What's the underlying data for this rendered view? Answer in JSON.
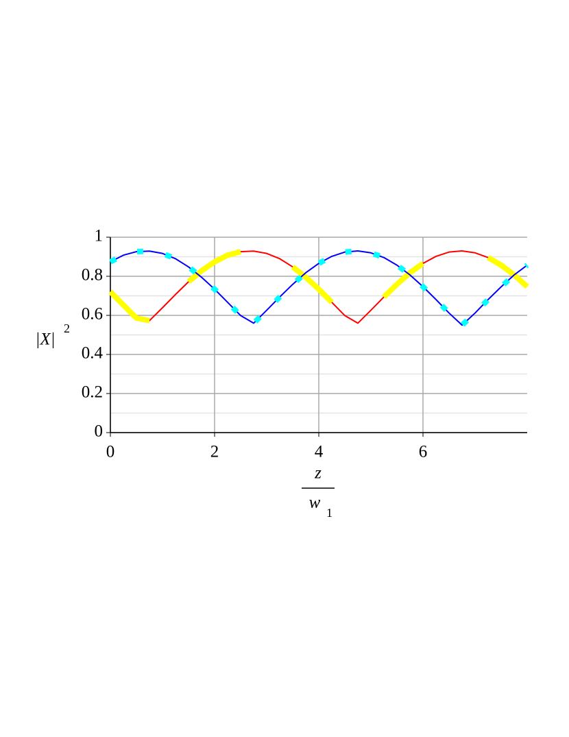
{
  "chart_data": {
    "type": "line",
    "xlabel": {
      "numerator": "z",
      "denominator": "w",
      "subscript": "1"
    },
    "ylabel": {
      "base": "|X|",
      "sup": "2"
    },
    "x": [
      0,
      0.25,
      0.5,
      0.75,
      1,
      1.25,
      1.5,
      1.75,
      2,
      2.25,
      2.5,
      2.75,
      3,
      3.25,
      3.5,
      3.75,
      4,
      4.25,
      4.5,
      4.75,
      5,
      5.25,
      5.5,
      5.75,
      6,
      6.25,
      6.5,
      6.75,
      7,
      7.25,
      7.5,
      7.75,
      8
    ],
    "series": [
      {
        "color": "#ff0000",
        "width": 2,
        "values": [
          0.721,
          0.653,
          0.586,
          0.573,
          0.639,
          0.707,
          0.772,
          0.828,
          0.874,
          0.908,
          0.926,
          0.929,
          0.917,
          0.89,
          0.848,
          0.795,
          0.734,
          0.667,
          0.599,
          0.56,
          0.626,
          0.694,
          0.759,
          0.818,
          0.866,
          0.902,
          0.924,
          0.93,
          0.92,
          0.896,
          0.857,
          0.807,
          0.747
        ]
      },
      {
        "color": "#ffff00",
        "width": 8,
        "values": [
          0.721,
          0.653,
          0.586,
          0.573,
          null,
          null,
          0.772,
          0.828,
          0.874,
          0.908,
          0.926,
          null,
          null,
          null,
          0.848,
          0.795,
          0.734,
          0.667,
          null,
          null,
          null,
          0.694,
          0.759,
          0.818,
          0.866,
          null,
          null,
          null,
          null,
          0.896,
          0.857,
          0.807,
          0.747
        ]
      },
      {
        "color": "#0000ff",
        "width": 2,
        "dash_color": "#00ffff",
        "values": [
          0.874,
          0.908,
          0.926,
          0.929,
          0.917,
          0.89,
          0.848,
          0.795,
          0.734,
          0.667,
          0.599,
          0.56,
          0.626,
          0.694,
          0.759,
          0.818,
          0.866,
          0.902,
          0.924,
          0.93,
          0.92,
          0.896,
          0.857,
          0.807,
          0.747,
          0.681,
          0.612,
          0.55,
          0.612,
          0.681,
          0.746,
          0.807,
          0.857
        ]
      }
    ],
    "xlim": [
      0,
      8
    ],
    "xticks": [
      0,
      2,
      4,
      6
    ],
    "ylim": [
      0,
      1
    ],
    "yticks": [
      0,
      0.2,
      0.4,
      0.6,
      0.8,
      1
    ],
    "y_minor_ticks": [
      0.1,
      0.3,
      0.5,
      0.7,
      0.9
    ],
    "grid": true
  }
}
